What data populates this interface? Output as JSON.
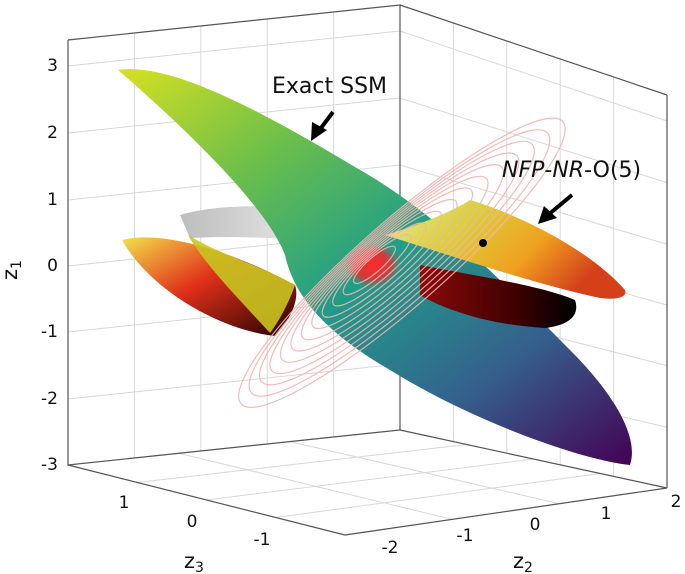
{
  "chart_data": {
    "type": "surface3d",
    "title": "",
    "axes": {
      "z1": {
        "label": "z",
        "subscript": "1",
        "ticks": [
          "3",
          "2",
          "1",
          "0",
          "-1",
          "-2",
          "-3"
        ],
        "range": [
          -3,
          3
        ]
      },
      "z2": {
        "label": "z",
        "subscript": "2",
        "ticks": [
          "-2",
          "-1",
          "0",
          "1",
          "2"
        ],
        "range": [
          -2,
          2
        ]
      },
      "z3": {
        "label": "z",
        "subscript": "3",
        "ticks": [
          "1",
          "0",
          "-1"
        ],
        "range": [
          -1.5,
          1.5
        ]
      }
    },
    "grid": true,
    "surfaces": [
      {
        "name": "Exact SSM",
        "colormap": "viridis-like",
        "contour_color": "#f4b3b0"
      },
      {
        "name": "NFP-NR-O(5)",
        "colormap": "hot-like (yellow-red-black)"
      }
    ],
    "annotations": [
      {
        "text": "Exact SSM",
        "target": "exact-ssm-surface"
      },
      {
        "parts": [
          {
            "text": "NFP",
            "italic": true
          },
          {
            "text": "-",
            "italic": false
          },
          {
            "text": "NR",
            "italic": true
          },
          {
            "text": "-O(5)",
            "italic": false
          }
        ],
        "target": "nfp-nr-o5-surface"
      }
    ],
    "marked_point": {
      "z2": 0.3,
      "z3": -0.2,
      "z1": 0.4
    },
    "colors": {
      "box": "#555555",
      "grid": "#d8d8d8",
      "arrow": "#000000"
    }
  }
}
